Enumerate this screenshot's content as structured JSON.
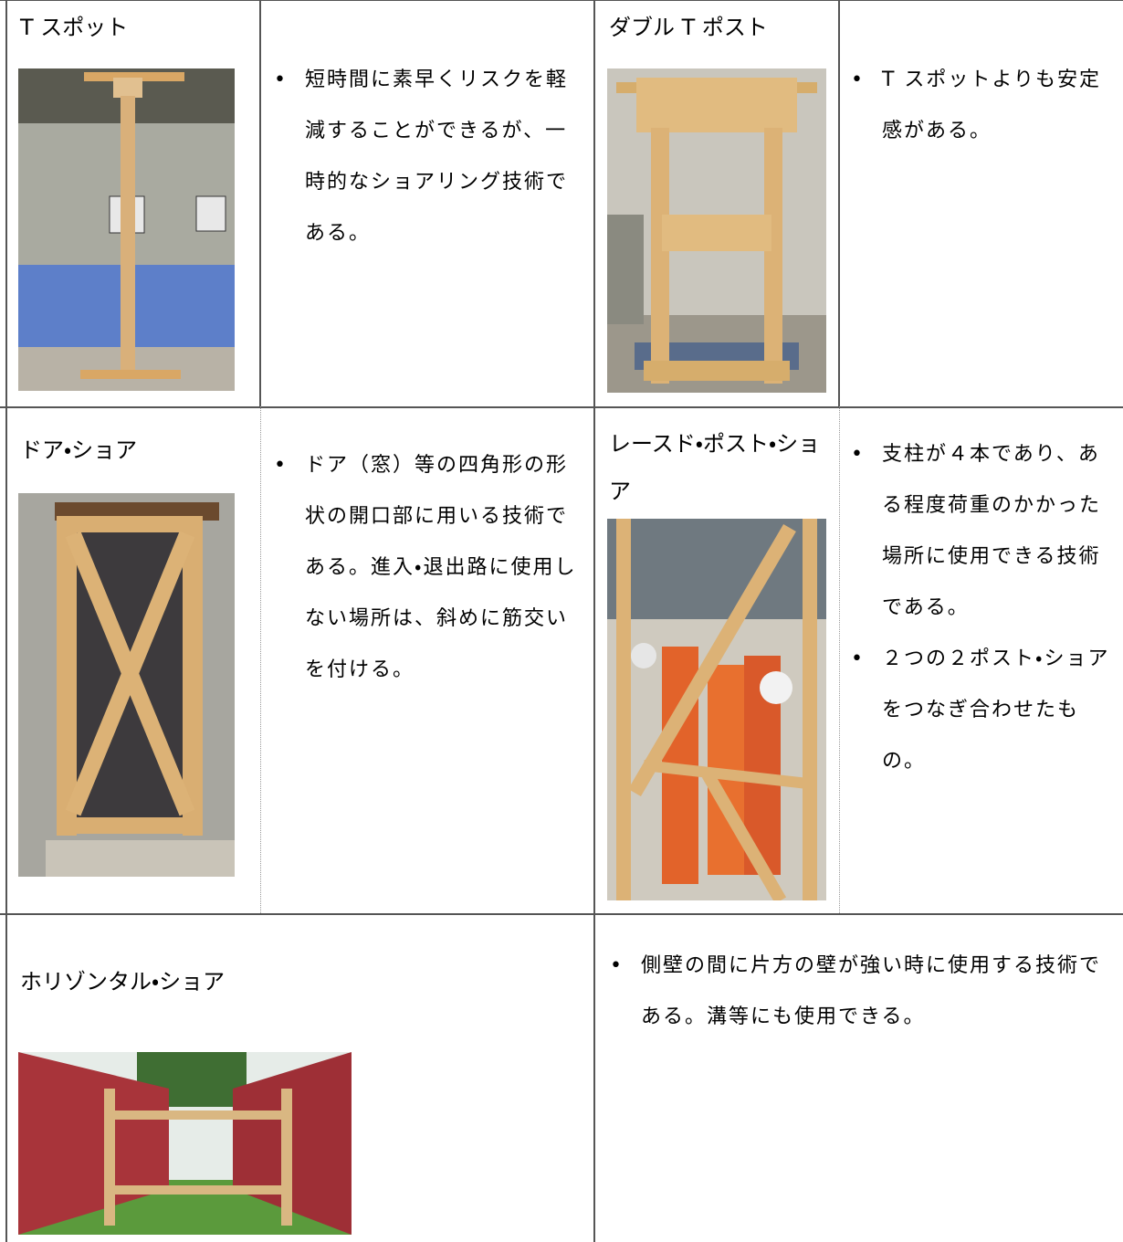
{
  "table": {
    "rows": [
      [
        {
          "title": "T スポット"
        },
        {
          "bullets": [
            "短時間に素早くリスクを軽減することができるが、一時的なショアリング技術である。"
          ]
        },
        {
          "title": "ダブル T ポスト"
        },
        {
          "bullets": [
            "T スポットよりも安定感がある。"
          ]
        }
      ],
      [
        {
          "title": "ドア・ショア"
        },
        {
          "bullets": [
            "ドア（窓）等の四角形の形状の開口部に用いる技術である。進入・退出路に使用しない場所は、斜めに筋交いを付ける。"
          ]
        },
        {
          "title": "レースド・ポスト・ショア"
        },
        {
          "bullets": [
            "支柱が４本であり、ある程度荷重のかかった場所に使用できる技術である。",
            "２つの２ポスト・ショアをつなぎ合わせたもの。"
          ]
        }
      ],
      [
        {
          "title": "ホリゾンタル・ショア"
        },
        {
          "bullets": [
            "側壁の間に片方の壁が強い時に使用する技術である。溝等にも使用できる。"
          ]
        }
      ]
    ]
  }
}
